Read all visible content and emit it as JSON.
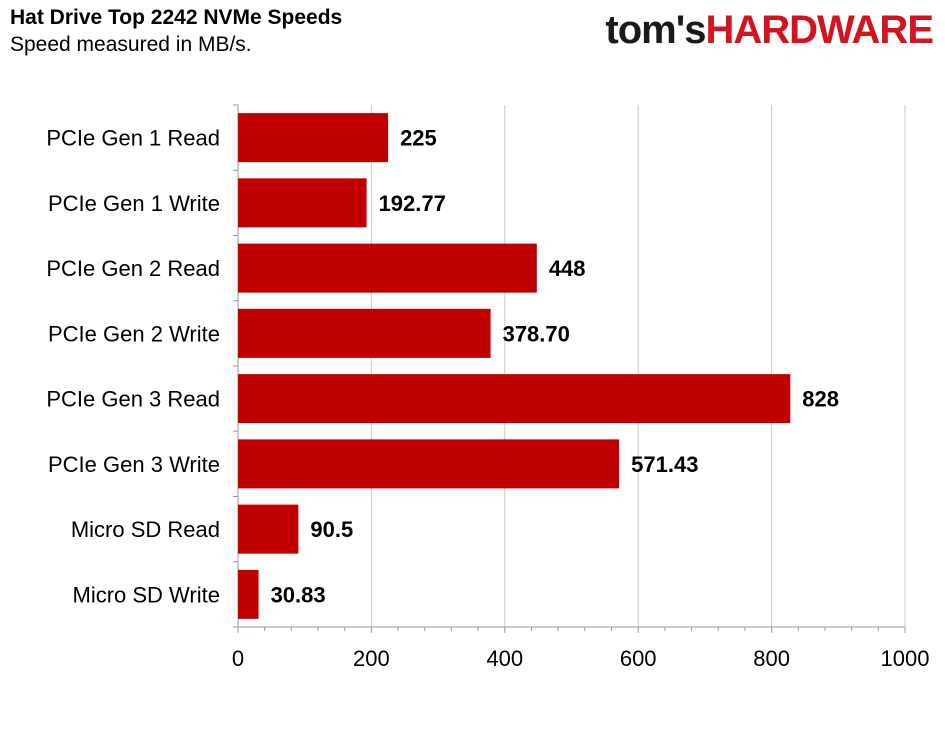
{
  "header": {
    "title": "Hat Drive Top 2242 NVMe Speeds",
    "subtitle": "Speed measured in MB/s."
  },
  "logo": {
    "part_a": "tom's",
    "part_b": "HARDWARE"
  },
  "colors": {
    "bar": "#c00000",
    "grid": "#c8c8c8",
    "axis": "#9a9a9a",
    "logo_accent": "#d5121d"
  },
  "chart_data": {
    "type": "bar",
    "orientation": "horizontal",
    "title": "Hat Drive Top 2242 NVMe Speeds",
    "subtitle": "Speed measured in MB/s.",
    "categories": [
      "PCIe Gen 1 Read",
      "PCIe Gen 1 Write",
      "PCIe Gen 2 Read",
      "PCIe Gen 2 Write",
      "PCIe Gen 3 Read",
      "PCIe Gen 3 Write",
      "Micro SD Read",
      "Micro SD Write"
    ],
    "values": [
      225,
      192.77,
      448,
      378.7,
      828,
      571.43,
      90.5,
      30.83
    ],
    "value_labels": [
      "225",
      "192.77",
      "448",
      "378.70",
      "828",
      "571.43",
      "90.5",
      "30.83"
    ],
    "xlim": [
      0,
      1000
    ],
    "x_ticks": [
      0,
      200,
      400,
      600,
      800,
      1000
    ],
    "xlabel": "",
    "ylabel": "",
    "grid": true,
    "legend": "none"
  }
}
